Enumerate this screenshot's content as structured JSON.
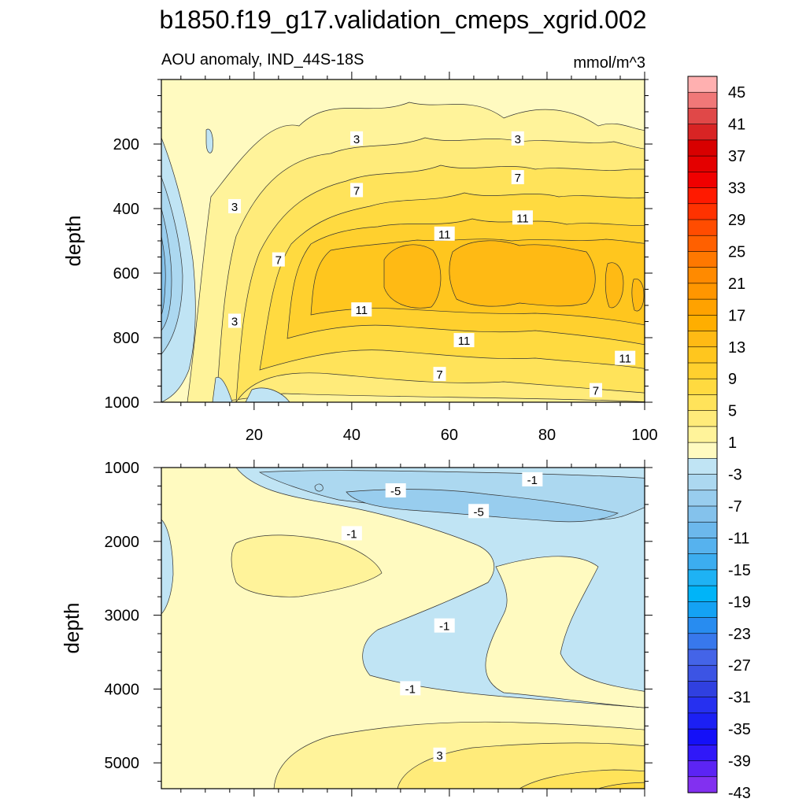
{
  "chart_data": {
    "type": "contour",
    "title": "b1850.f19_g17.validation_cmeps_xgrid.002",
    "subtitle_left": "AOU anomaly, IND_44S-18S",
    "subtitle_right": "mmol/m^3",
    "x_axis": {
      "label": "",
      "range": [
        1,
        100
      ],
      "ticks": [
        "20",
        "40",
        "60",
        "80",
        "100"
      ],
      "tick_values": [
        20,
        40,
        60,
        80,
        100
      ]
    },
    "panels": [
      {
        "name": "upper",
        "ylabel": "depth",
        "ylim": [
          0,
          1000
        ],
        "y_ticks": [
          "200",
          "400",
          "600",
          "800",
          "1000"
        ],
        "y_tick_values": [
          200,
          400,
          600,
          800,
          1000
        ],
        "contour_labels": [
          {
            "text": "3",
            "x": 41,
            "depth": 185
          },
          {
            "text": "3",
            "x": 74,
            "depth": 185
          },
          {
            "text": "3",
            "x": 16,
            "depth": 395
          },
          {
            "text": "3",
            "x": 16,
            "depth": 750
          },
          {
            "text": "7",
            "x": 41,
            "depth": 345
          },
          {
            "text": "7",
            "x": 74,
            "depth": 305
          },
          {
            "text": "7",
            "x": 25,
            "depth": 560
          },
          {
            "text": "7",
            "x": 58,
            "depth": 915
          },
          {
            "text": "7",
            "x": 90,
            "depth": 965
          },
          {
            "text": "11",
            "x": 59,
            "depth": 480
          },
          {
            "text": "11",
            "x": 75,
            "depth": 430
          },
          {
            "text": "11",
            "x": 42,
            "depth": 715
          },
          {
            "text": "11",
            "x": 63,
            "depth": 810
          },
          {
            "text": "11",
            "x": 96,
            "depth": 865
          }
        ]
      },
      {
        "name": "lower",
        "ylabel": "depth",
        "ylim": [
          1000,
          5350
        ],
        "y_ticks": [
          "1000",
          "2000",
          "3000",
          "4000",
          "5000"
        ],
        "y_tick_values": [
          1000,
          2000,
          3000,
          4000,
          5000
        ],
        "contour_labels": [
          {
            "text": "-1",
            "x": 77,
            "depth": 1170
          },
          {
            "text": "-5",
            "x": 49,
            "depth": 1320
          },
          {
            "text": "-5",
            "x": 66,
            "depth": 1600
          },
          {
            "text": "-1",
            "x": 40,
            "depth": 1900
          },
          {
            "text": "-1",
            "x": 59,
            "depth": 3150
          },
          {
            "text": "-1",
            "x": 52,
            "depth": 4000
          },
          {
            "text": "3",
            "x": 58,
            "depth": 4900
          }
        ]
      }
    ],
    "colorbar": {
      "labels": [
        "45",
        "41",
        "37",
        "33",
        "29",
        "25",
        "21",
        "17",
        "13",
        "9",
        "5",
        "1",
        "-3",
        "-7",
        "-11",
        "-15",
        "-19",
        "-23",
        "-27",
        "-31",
        "-35",
        "-39",
        "-43"
      ],
      "colors": [
        "#ffb0b0",
        "#f07878",
        "#e04848",
        "#d82424",
        "#d80000",
        "#e40000",
        "#f00000",
        "#ff1a00",
        "#ff3200",
        "#ff4c00",
        "#ff6000",
        "#ff7800",
        "#ff8a00",
        "#ff9600",
        "#ffa200",
        "#ffae00",
        "#ffba14",
        "#ffc61e",
        "#ffd02e",
        "#ffda40",
        "#ffe35a",
        "#ffeb7a",
        "#fff39a",
        "#fffac0",
        "#c0e4f4",
        "#acd8f0",
        "#98cdee",
        "#84c2ec",
        "#6cb8ec",
        "#56b2ee",
        "#3cadf0",
        "#1eb2f4",
        "#00b4f8",
        "#14a2f4",
        "#288cf0",
        "#3878ec",
        "#4464e8",
        "#3c54e4",
        "#3040e0",
        "#2630f0",
        "#1c20f4",
        "#1410f8",
        "#3018f8",
        "#5c24f4",
        "#8230f0"
      ],
      "label_top_index": 1
    },
    "fill_colors": {
      "c1": "#fffac0",
      "c3": "#fff39a",
      "c5": "#ffeb7a",
      "c7": "#ffe35a",
      "c9": "#ffda40",
      "c11": "#ffd02e",
      "c13": "#ffc61e",
      "c15": "#ffba14",
      "n1": "#c0e4f4",
      "n3": "#acd8f0",
      "n5": "#98cdee",
      "n7": "#84c2ec"
    }
  }
}
